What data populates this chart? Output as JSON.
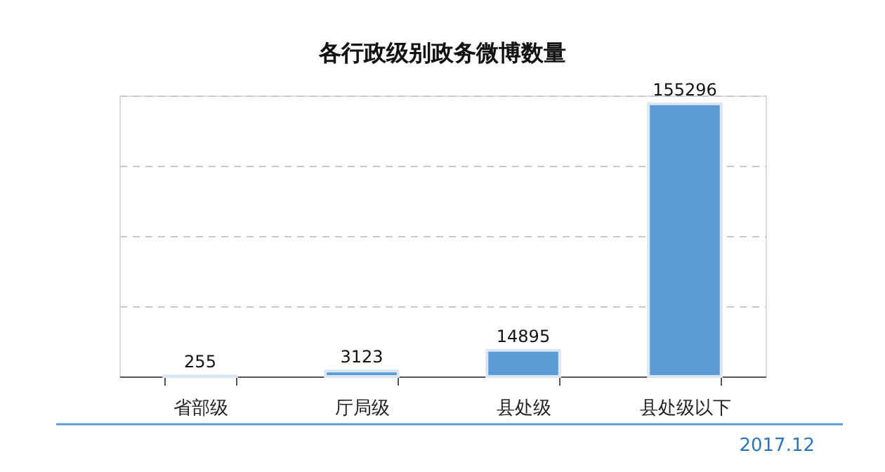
{
  "chart_data": {
    "type": "bar",
    "title": "各行政级别政务微博数量",
    "categories": [
      "省部级",
      "厅局级",
      "县处级",
      "县处级以下"
    ],
    "values": [
      255,
      3123,
      14895,
      155296
    ],
    "color": "#5b9bd5",
    "data_labels": true,
    "ylim": [
      0,
      160000
    ],
    "yticks": [
      {
        "value": 0,
        "label": null
      },
      {
        "value": 40000,
        "label": null
      },
      {
        "value": 80000,
        "label": null
      },
      {
        "value": 120000,
        "label": null
      },
      {
        "value": 160000,
        "label": null
      }
    ],
    "grid": "y",
    "tick_labels": "x",
    "annotations": [
      "2017.12"
    ]
  }
}
